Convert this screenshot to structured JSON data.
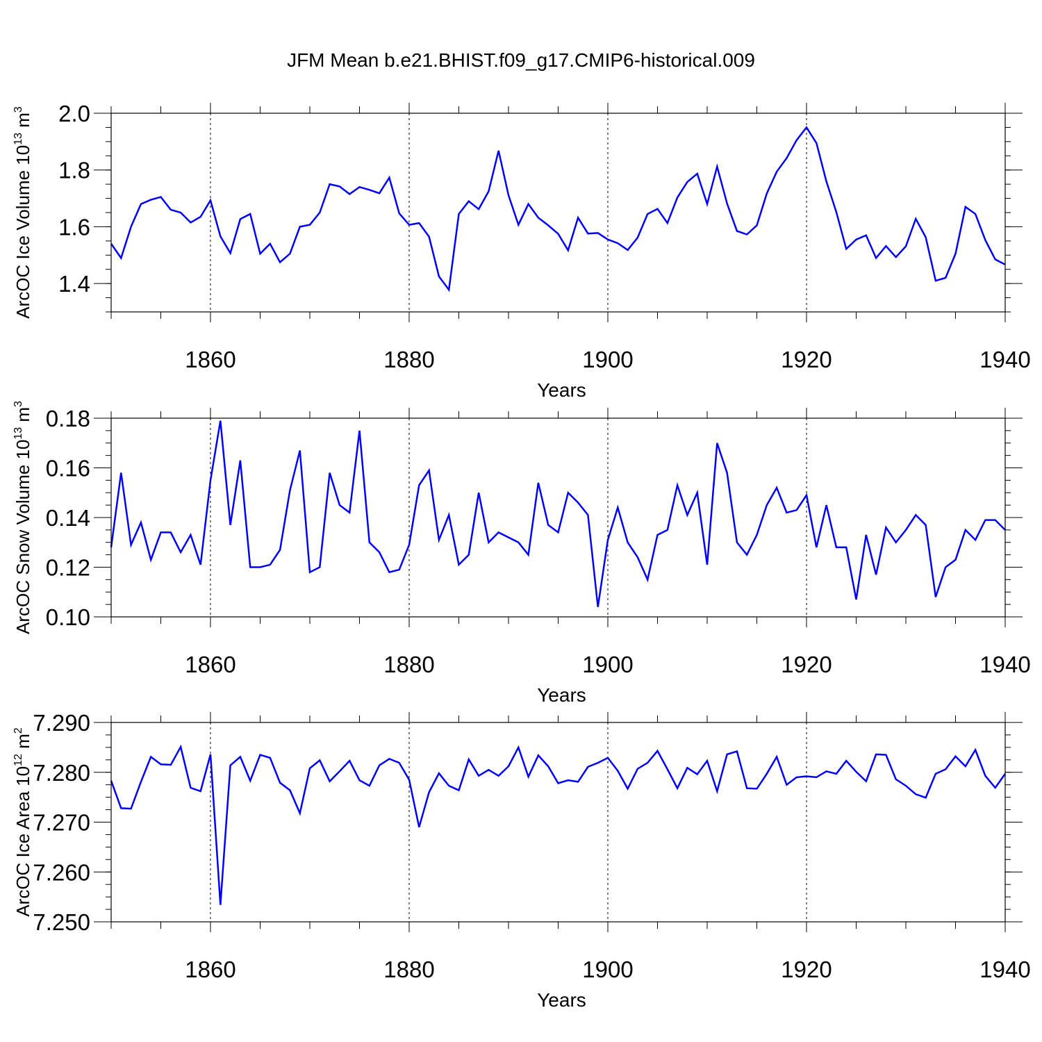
{
  "chart_data": [
    {
      "type": "line",
      "title": "JFM Mean b.e21.BHIST.f09_g17.CMIP6-historical.009",
      "ylabel": "ArcOC Ice Volume 10",
      "ylabel_exp": "13",
      "ylabel_unit": " m",
      "ylabel_unit_exp": "3",
      "xlabel": "Years",
      "xlim": [
        1850,
        1940
      ],
      "ylim": [
        1.3,
        2.0
      ],
      "xticks": [
        "1860",
        "1880",
        "1900",
        "1920",
        "1940"
      ],
      "yticks": [
        "1.4",
        "1.6",
        "1.8",
        "2.0"
      ],
      "ytick_values": [
        1.4,
        1.6,
        1.8,
        2.0
      ],
      "y_minor_step": 0.05,
      "x": [
        1850,
        1851,
        1852,
        1853,
        1854,
        1855,
        1856,
        1857,
        1858,
        1859,
        1860,
        1861,
        1862,
        1863,
        1864,
        1865,
        1866,
        1867,
        1868,
        1869,
        1870,
        1871,
        1872,
        1873,
        1874,
        1875,
        1876,
        1877,
        1878,
        1879,
        1880,
        1881,
        1882,
        1883,
        1884,
        1885,
        1886,
        1887,
        1888,
        1889,
        1890,
        1891,
        1892,
        1893,
        1894,
        1895,
        1896,
        1897,
        1898,
        1899,
        1900,
        1901,
        1902,
        1903,
        1904,
        1905,
        1906,
        1907,
        1908,
        1909,
        1910,
        1911,
        1912,
        1913,
        1914,
        1915,
        1916,
        1917,
        1918,
        1919,
        1920,
        1921,
        1922,
        1923,
        1924,
        1925,
        1926,
        1927,
        1928,
        1929,
        1930,
        1931,
        1932,
        1933,
        1934,
        1935,
        1936,
        1937,
        1938,
        1939,
        1940
      ],
      "series": [
        {
          "name": "Ice Volume",
          "color": "#0000ff",
          "values": [
            1.54,
            1.49,
            1.6,
            1.68,
            1.695,
            1.705,
            1.66,
            1.65,
            1.615,
            1.635,
            1.693,
            1.566,
            1.507,
            1.627,
            1.645,
            1.505,
            1.54,
            1.475,
            1.505,
            1.6,
            1.607,
            1.65,
            1.75,
            1.742,
            1.715,
            1.74,
            1.73,
            1.718,
            1.773,
            1.647,
            1.607,
            1.613,
            1.565,
            1.425,
            1.378,
            1.645,
            1.69,
            1.662,
            1.725,
            1.868,
            1.711,
            1.607,
            1.68,
            1.632,
            1.605,
            1.575,
            1.517,
            1.632,
            1.576,
            1.578,
            1.555,
            1.542,
            1.518,
            1.562,
            1.645,
            1.663,
            1.613,
            1.703,
            1.758,
            1.787,
            1.68,
            1.812,
            1.682,
            1.585,
            1.573,
            1.605,
            1.717,
            1.794,
            1.842,
            1.905,
            1.95,
            1.895,
            1.76,
            1.652,
            1.522,
            1.555,
            1.57,
            1.49,
            1.532,
            1.493,
            1.531,
            1.628,
            1.563,
            1.41,
            1.42,
            1.505,
            1.67,
            1.645,
            1.553,
            1.485,
            1.467
          ]
        }
      ]
    },
    {
      "type": "line",
      "ylabel": "ArcOC Snow Volume 10",
      "ylabel_exp": "13",
      "ylabel_unit": " m",
      "ylabel_unit_exp": "3",
      "xlabel": "Years",
      "xlim": [
        1850,
        1940
      ],
      "ylim": [
        0.1,
        0.18
      ],
      "xticks": [
        "1860",
        "1880",
        "1900",
        "1920",
        "1940"
      ],
      "yticks": [
        "0.10",
        "0.12",
        "0.14",
        "0.16",
        "0.18"
      ],
      "ytick_values": [
        0.1,
        0.12,
        0.14,
        0.16,
        0.18
      ],
      "y_minor_step": 0.005,
      "x": [
        1850,
        1851,
        1852,
        1853,
        1854,
        1855,
        1856,
        1857,
        1858,
        1859,
        1860,
        1861,
        1862,
        1863,
        1864,
        1865,
        1866,
        1867,
        1868,
        1869,
        1870,
        1871,
        1872,
        1873,
        1874,
        1875,
        1876,
        1877,
        1878,
        1879,
        1880,
        1881,
        1882,
        1883,
        1884,
        1885,
        1886,
        1887,
        1888,
        1889,
        1890,
        1891,
        1892,
        1893,
        1894,
        1895,
        1896,
        1897,
        1898,
        1899,
        1900,
        1901,
        1902,
        1903,
        1904,
        1905,
        1906,
        1907,
        1908,
        1909,
        1910,
        1911,
        1912,
        1913,
        1914,
        1915,
        1916,
        1917,
        1918,
        1919,
        1920,
        1921,
        1922,
        1923,
        1924,
        1925,
        1926,
        1927,
        1928,
        1929,
        1930,
        1931,
        1932,
        1933,
        1934,
        1935,
        1936,
        1937,
        1938,
        1939,
        1940
      ],
      "series": [
        {
          "name": "Snow Volume",
          "color": "#0000ff",
          "values": [
            0.128,
            0.158,
            0.129,
            0.138,
            0.123,
            0.134,
            0.134,
            0.126,
            0.133,
            0.121,
            0.155,
            0.179,
            0.137,
            0.163,
            0.12,
            0.12,
            0.121,
            0.127,
            0.151,
            0.167,
            0.118,
            0.12,
            0.158,
            0.145,
            0.142,
            0.175,
            0.13,
            0.126,
            0.118,
            0.119,
            0.129,
            0.153,
            0.159,
            0.131,
            0.141,
            0.121,
            0.125,
            0.15,
            0.13,
            0.134,
            0.132,
            0.13,
            0.125,
            0.154,
            0.137,
            0.134,
            0.15,
            0.146,
            0.141,
            0.104,
            0.131,
            0.144,
            0.13,
            0.124,
            0.115,
            0.133,
            0.135,
            0.153,
            0.141,
            0.15,
            0.121,
            0.17,
            0.158,
            0.13,
            0.125,
            0.133,
            0.145,
            0.152,
            0.142,
            0.143,
            0.149,
            0.128,
            0.145,
            0.128,
            0.128,
            0.107,
            0.133,
            0.117,
            0.136,
            0.13,
            0.135,
            0.141,
            0.137,
            0.108,
            0.12,
            0.123,
            0.135,
            0.131,
            0.139,
            0.139,
            0.135
          ]
        }
      ]
    },
    {
      "type": "line",
      "ylabel": "ArcOC Ice Area 10",
      "ylabel_exp": "12",
      "ylabel_unit": " m",
      "ylabel_unit_exp": "2",
      "xlabel": "Years",
      "xlim": [
        1850,
        1940
      ],
      "ylim": [
        7.25,
        7.29
      ],
      "xticks": [
        "1860",
        "1880",
        "1900",
        "1920",
        "1940"
      ],
      "yticks": [
        "7.250",
        "7.260",
        "7.270",
        "7.280",
        "7.290"
      ],
      "ytick_values": [
        7.25,
        7.26,
        7.27,
        7.28,
        7.29
      ],
      "y_minor_step": 0.0025,
      "x": [
        1850,
        1851,
        1852,
        1853,
        1854,
        1855,
        1856,
        1857,
        1858,
        1859,
        1860,
        1861,
        1862,
        1863,
        1864,
        1865,
        1866,
        1867,
        1868,
        1869,
        1870,
        1871,
        1872,
        1873,
        1874,
        1875,
        1876,
        1877,
        1878,
        1879,
        1880,
        1881,
        1882,
        1883,
        1884,
        1885,
        1886,
        1887,
        1888,
        1889,
        1890,
        1891,
        1892,
        1893,
        1894,
        1895,
        1896,
        1897,
        1898,
        1899,
        1900,
        1901,
        1902,
        1903,
        1904,
        1905,
        1906,
        1907,
        1908,
        1909,
        1910,
        1911,
        1912,
        1913,
        1914,
        1915,
        1916,
        1917,
        1918,
        1919,
        1920,
        1921,
        1922,
        1923,
        1924,
        1925,
        1926,
        1927,
        1928,
        1929,
        1930,
        1931,
        1932,
        1933,
        1934,
        1935,
        1936,
        1937,
        1938,
        1939,
        1940
      ],
      "series": [
        {
          "name": "Ice Area",
          "color": "#0000ff",
          "values": [
            7.2783,
            7.2728,
            7.2727,
            7.2781,
            7.2831,
            7.2816,
            7.2815,
            7.2851,
            7.2769,
            7.2762,
            7.2836,
            7.2534,
            7.2814,
            7.2831,
            7.2783,
            7.2835,
            7.2829,
            7.2779,
            7.2764,
            7.2718,
            7.2808,
            7.2824,
            7.2782,
            7.2802,
            7.2823,
            7.2784,
            7.2773,
            7.2814,
            7.2827,
            7.2819,
            7.2785,
            7.269,
            7.276,
            7.2798,
            7.2773,
            7.2764,
            7.2826,
            7.2793,
            7.2805,
            7.2793,
            7.2812,
            7.285,
            7.2791,
            7.2834,
            7.2812,
            7.2778,
            7.2784,
            7.2781,
            7.2811,
            7.2819,
            7.2829,
            7.2803,
            7.2767,
            7.2807,
            7.2819,
            7.2843,
            7.2806,
            7.2768,
            7.2809,
            7.2796,
            7.2823,
            7.2762,
            7.2836,
            7.2842,
            7.2768,
            7.2767,
            7.2797,
            7.2831,
            7.2775,
            7.279,
            7.2792,
            7.279,
            7.2802,
            7.2797,
            7.2823,
            7.2801,
            7.2782,
            7.2836,
            7.2835,
            7.2786,
            7.2773,
            7.2756,
            7.2749,
            7.2797,
            7.2806,
            7.2832,
            7.2812,
            7.2845,
            7.2793,
            7.2769,
            7.2797
          ]
        }
      ]
    }
  ]
}
